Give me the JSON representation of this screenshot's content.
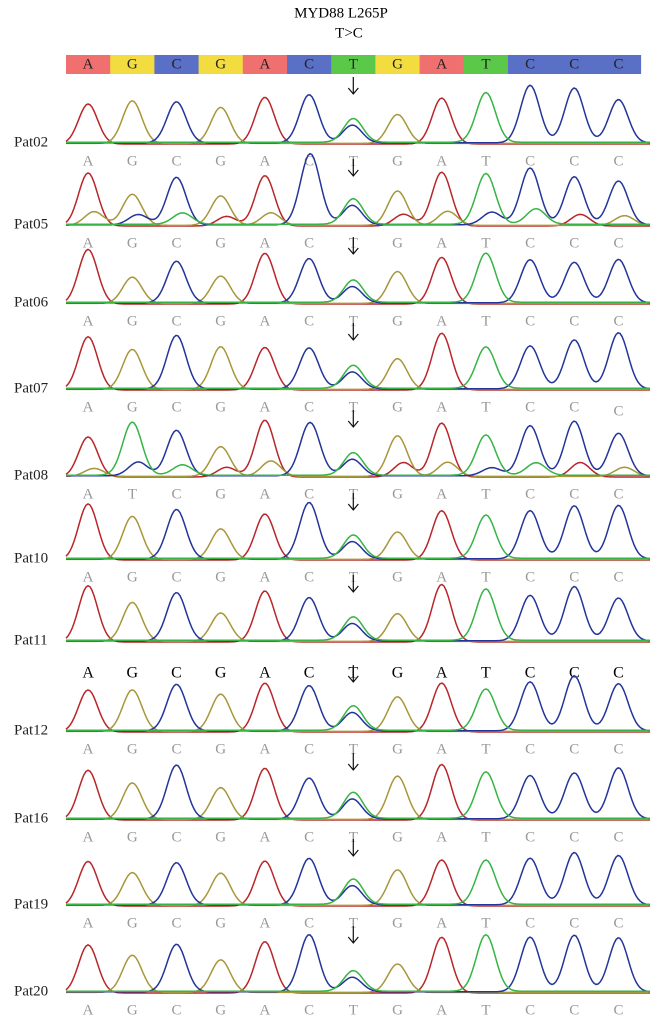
{
  "title": "MYD88  L265P",
  "subtitle": "T>C",
  "reference": {
    "bases": [
      "A",
      "G",
      "C",
      "G",
      "A",
      "C",
      "T",
      "G",
      "A",
      "T",
      "C",
      "C",
      "C"
    ],
    "colors": {
      "A": "#f07070",
      "G": "#f3dc40",
      "C": "#5a6fc6",
      "T": "#5cc84a"
    }
  },
  "trace_colors": {
    "A": "#b8262a",
    "G": "#a8963a",
    "C": "#23349a",
    "T": "#36b445"
  },
  "panels": [
    {
      "label": "Pat02",
      "bases": [
        "A",
        "G",
        "C",
        "G",
        "A",
        "C",
        "T",
        "G",
        "A",
        "T",
        "C",
        "C",
        "C"
      ],
      "letter_color": "#999999"
    },
    {
      "label": "Pat05",
      "bases": [
        "A",
        "G",
        "C",
        "G",
        "A",
        "C",
        "T",
        "G",
        "A",
        "T",
        "C",
        "C",
        "C"
      ],
      "letter_color": "#999999"
    },
    {
      "label": "Pat06",
      "bases": [
        "A",
        "G",
        "C",
        "G",
        "A",
        "C",
        "T",
        "G",
        "A",
        "T",
        "C",
        "C",
        "C"
      ],
      "letter_color": "#999999"
    },
    {
      "label": "Pat07",
      "bases": [
        "A",
        "G",
        "C",
        "G",
        "A",
        "C",
        "T",
        "G",
        "A",
        "T",
        "C",
        "C",
        "C"
      ],
      "letter_color": "#999999"
    },
    {
      "label": "Pat08",
      "bases": [
        "A",
        "T",
        "C",
        "G",
        "A",
        "C",
        "T",
        "G",
        "A",
        "T",
        "C",
        "C",
        "C"
      ],
      "letter_color": "#999999"
    },
    {
      "label": "Pat10",
      "bases": [
        "A",
        "G",
        "C",
        "G",
        "A",
        "C",
        "T",
        "G",
        "A",
        "T",
        "C",
        "C",
        "C"
      ],
      "letter_color": "#999999"
    },
    {
      "label": "Pat11",
      "bases": [
        "A",
        "G",
        "C",
        "G",
        "A",
        "C",
        "T",
        "G",
        "A",
        "T",
        "C",
        "C",
        "C"
      ],
      "letter_color": "#000000"
    },
    {
      "label": "Pat12",
      "bases": [
        "A",
        "G",
        "C",
        "G",
        "A",
        "C",
        "T",
        "G",
        "A",
        "T",
        "C",
        "C",
        "C"
      ],
      "letter_color": "#999999"
    },
    {
      "label": "Pat16",
      "bases": [
        "A",
        "G",
        "C",
        "G",
        "A",
        "C",
        "T",
        "G",
        "A",
        "T",
        "C",
        "C",
        "C"
      ],
      "letter_color": "#999999"
    },
    {
      "label": "Pat19",
      "bases": [
        "A",
        "G",
        "C",
        "G",
        "A",
        "C",
        "T",
        "G",
        "A",
        "T",
        "C",
        "C",
        "C"
      ],
      "letter_color": "#999999"
    },
    {
      "label": "Pat20",
      "bases": [
        "A",
        "G",
        "C",
        "G",
        "A",
        "C",
        "T",
        "G",
        "A",
        "T",
        "C",
        "C",
        "C"
      ],
      "letter_color": "#999999"
    }
  ]
}
